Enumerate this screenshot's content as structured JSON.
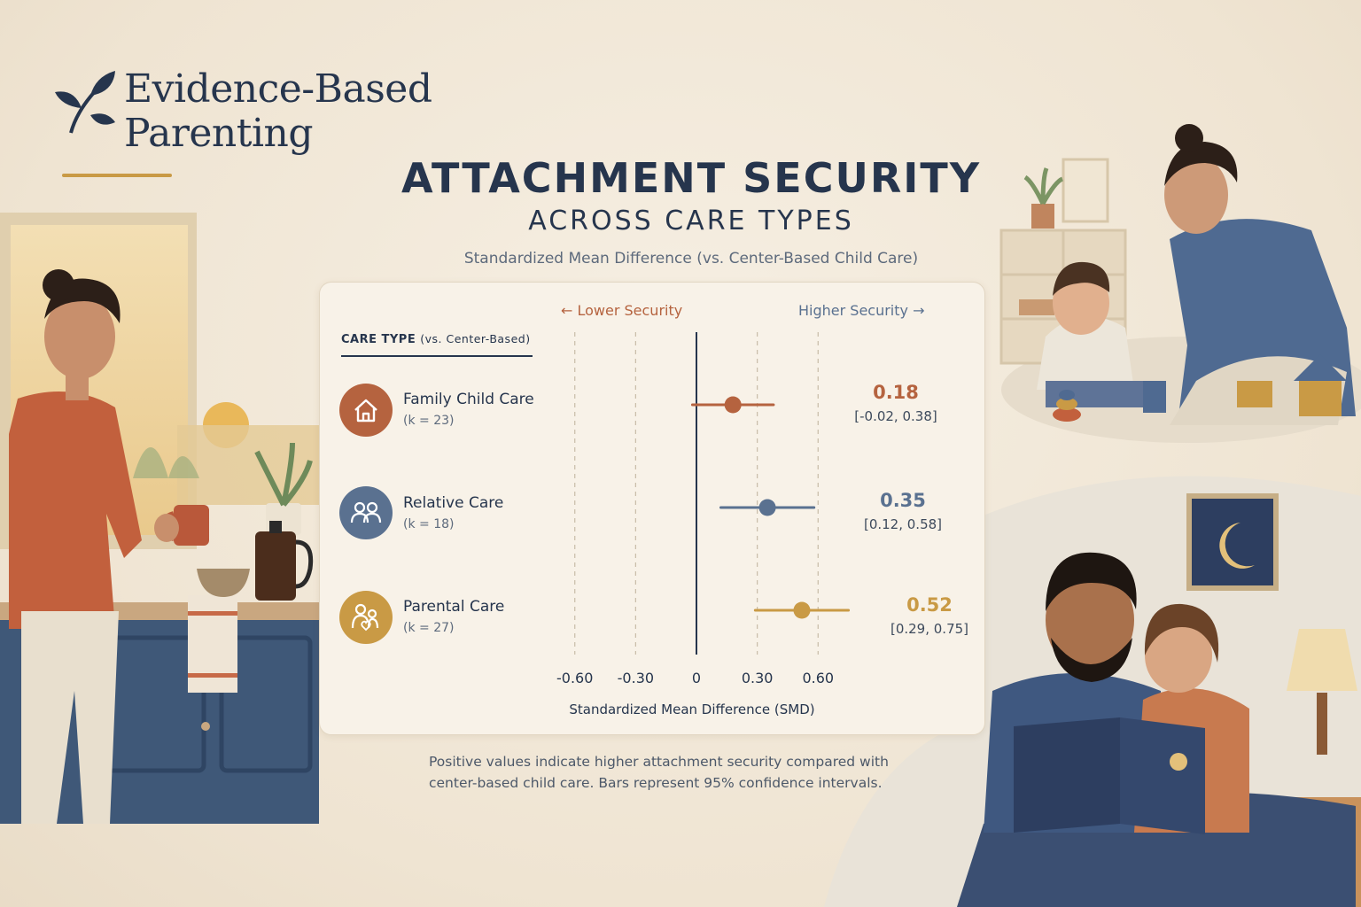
{
  "brand": {
    "line1": "Evidence-Based",
    "line2": "Parenting",
    "icon": "leaf-icon"
  },
  "title_line1": "ATTACHMENT SECURITY",
  "title_line2": "ACROSS CARE TYPES",
  "subtitle": "Standardized Mean Difference (vs. Center-Based Child Care)",
  "table_heading": "CARE TYPE",
  "table_heading_sub": "(vs. Center-Based)",
  "direction_lower": "← Lower Security",
  "direction_higher": "Higher Security →",
  "footnote_line1": "Positive values indicate higher attachment security compared with",
  "footnote_line2": "center-based child care. Bars represent 95% confidence intervals.",
  "chart_data": {
    "type": "forest",
    "title": "ATTACHMENT SECURITY ACROSS CARE TYPES",
    "subtitle": "Standardized Mean Difference (vs. Center-Based Child Care)",
    "xlabel": "Standardized Mean Difference (SMD)",
    "xlim": [
      -0.66,
      0.66
    ],
    "xticks": [
      -0.6,
      -0.3,
      0,
      0.3,
      0.6
    ],
    "xtick_labels": [
      "-0.60",
      "-0.30",
      "0",
      "0.30",
      "0.60"
    ],
    "reference_line": 0,
    "grid": "dashed vertical at ticks",
    "series": [
      {
        "name": "Family Child Care",
        "k_label": "(k = 23)",
        "estimate": 0.18,
        "ci_low": -0.02,
        "ci_high": 0.38,
        "estimate_label": "0.18",
        "ci_label": "[-0.02, 0.38]",
        "color": "#b5633f",
        "icon": "house-icon"
      },
      {
        "name": "Relative Care",
        "k_label": "(k = 18)",
        "estimate": 0.35,
        "ci_low": 0.12,
        "ci_high": 0.58,
        "estimate_label": "0.35",
        "ci_label": "[0.12,  0.58]",
        "color": "#5a7190",
        "icon": "two-people-icon"
      },
      {
        "name": "Parental Care",
        "k_label": "(k = 27)",
        "estimate": 0.52,
        "ci_low": 0.29,
        "ci_high": 0.75,
        "estimate_label": "0.52",
        "ci_label": "[0.29, 0.75]",
        "color": "#c99a45",
        "icon": "parent-child-heart-icon"
      }
    ]
  },
  "colors": {
    "navy": "#26354d",
    "terracotta": "#b5633f",
    "slate_blue": "#5a7190",
    "gold": "#c99a45",
    "cream": "#f2e9db"
  }
}
